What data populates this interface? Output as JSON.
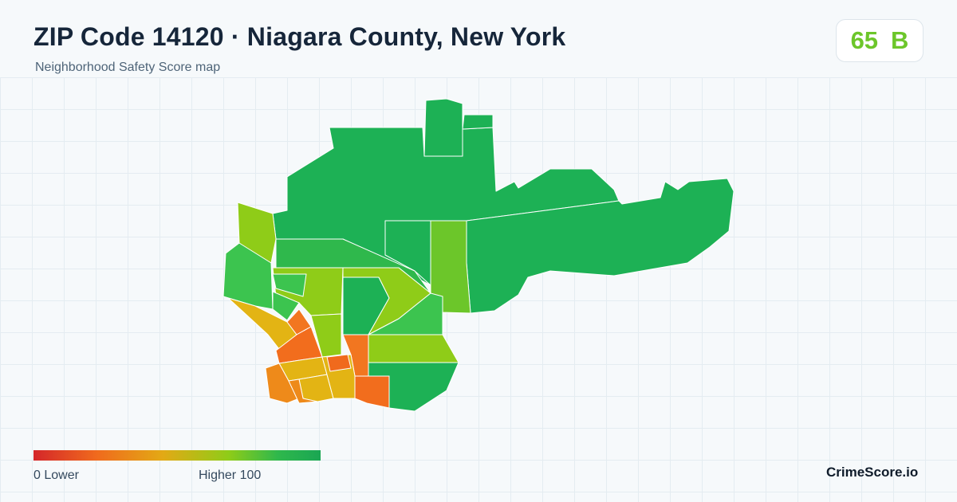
{
  "header": {
    "title": "ZIP Code 14120 · Niagara County, New York",
    "subtitle": "Neighborhood Safety Score map"
  },
  "score": {
    "value": "65",
    "grade": "B",
    "color": "#6cc62a"
  },
  "legend": {
    "low_label": "0  Lower",
    "high_label": "Higher  100",
    "colors": [
      "#d4262a",
      "#f06a1d",
      "#e3a915",
      "#8fcc18",
      "#2fb84c",
      "#1aa653"
    ]
  },
  "brand": "CrimeScore.io",
  "colors": {
    "background": "#f6f9fb",
    "grid": "#e4ecf1",
    "score_high": "#1db155",
    "score_good": "#3cc44f",
    "score_mid_high": "#6cc62a",
    "score_mid": "#8fcc18",
    "score_mid_low": "#e3b414",
    "score_low": "#ee8a1a",
    "score_lowest": "#f26d1d"
  }
}
